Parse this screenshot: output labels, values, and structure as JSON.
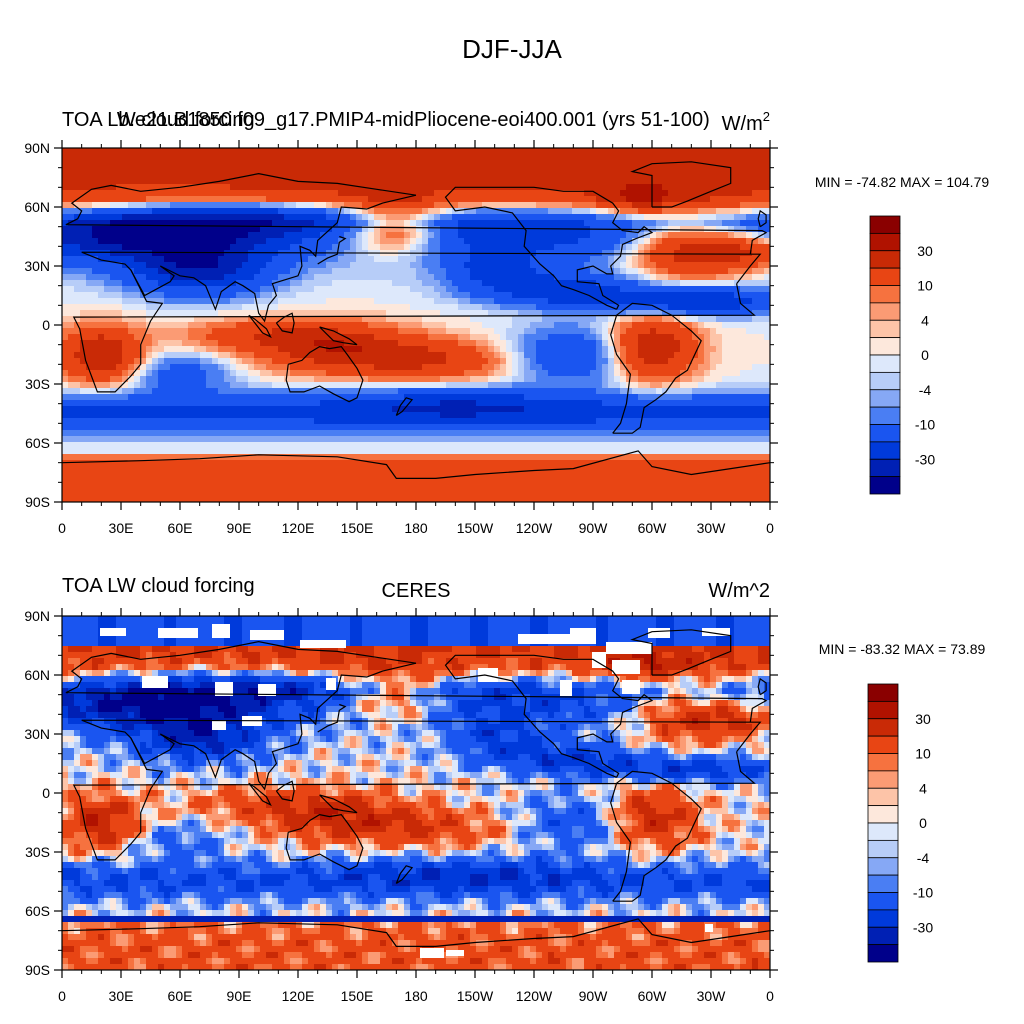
{
  "figure": {
    "title": "DJF-JJA"
  },
  "colors": {
    "palette": [
      "#00008a",
      "#0020b4",
      "#003adb",
      "#1a55f0",
      "#4a7ef3",
      "#86a8f5",
      "#b7cdf8",
      "#dde8fb",
      "#fde8dc",
      "#fdc4a8",
      "#fb9b74",
      "#f6723f",
      "#e84514",
      "#c92a06",
      "#b01200",
      "#8a0000"
    ]
  },
  "chart_data": [
    {
      "type": "heatmap",
      "title_left": "TOA LW cloud forcing",
      "title_center": "b.e21.B1850.f09_g17.PMIP4-midPliocene-eoi400.001 (yrs 51-100)",
      "units": "W/m",
      "units_superscript": "2",
      "stats": "MIN = -74.82 MAX = 104.79",
      "min": -74.82,
      "max": 104.79,
      "xlim": [
        0,
        360
      ],
      "ylim": [
        -90,
        90
      ],
      "lon_labels": [
        "0",
        "30E",
        "60E",
        "90E",
        "120E",
        "150E",
        "180",
        "150W",
        "120W",
        "90W",
        "60W",
        "30W",
        "0"
      ],
      "lat_labels": [
        "90N",
        "60N",
        "30N",
        "0",
        "30S",
        "60S",
        "90S"
      ],
      "colorbar_labels": [
        "30",
        "10",
        "4",
        "0",
        "-4",
        "-10",
        "-30"
      ],
      "has_missing": false
    },
    {
      "type": "heatmap",
      "title_left": "TOA LW cloud forcing",
      "title_center": "CERES",
      "units": "W/m^2",
      "units_superscript": "",
      "stats": "MIN = -83.32 MAX =  73.89",
      "min": -83.32,
      "max": 73.89,
      "xlim": [
        0,
        360
      ],
      "ylim": [
        -90,
        90
      ],
      "lon_labels": [
        "0",
        "30E",
        "60E",
        "90E",
        "120E",
        "150E",
        "180",
        "150W",
        "120W",
        "90W",
        "60W",
        "30W",
        "0"
      ],
      "lat_labels": [
        "90N",
        "60N",
        "30N",
        "0",
        "30S",
        "60S",
        "90S"
      ],
      "colorbar_labels": [
        "30",
        "10",
        "4",
        "0",
        "-4",
        "-10",
        "-30"
      ],
      "has_missing": true
    }
  ]
}
